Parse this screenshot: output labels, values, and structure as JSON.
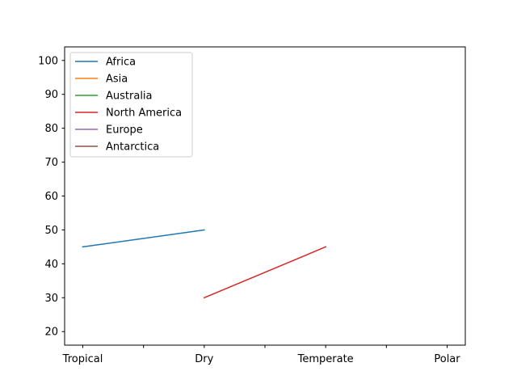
{
  "chart_data": {
    "type": "line",
    "categories": [
      "Tropical",
      "",
      "Dry",
      "",
      "Temperate",
      "",
      "Polar"
    ],
    "x_positions": [
      0,
      0.5,
      1,
      1.5,
      2,
      2.5,
      3
    ],
    "ylim": [
      16,
      104
    ],
    "yticks": [
      20,
      30,
      40,
      50,
      60,
      70,
      80,
      90,
      100
    ],
    "grid": false,
    "legend_position": "top-left",
    "series": [
      {
        "name": "Africa",
        "color": "#1f77b4",
        "x": [
          0,
          1
        ],
        "y": [
          45,
          50
        ]
      },
      {
        "name": "Asia",
        "color": "#ff7f0e",
        "x": [],
        "y": []
      },
      {
        "name": "Australia",
        "color": "#2ca02c",
        "x": [],
        "y": []
      },
      {
        "name": "North America",
        "color": "#d62728",
        "x": [
          1,
          2
        ],
        "y": [
          30,
          45
        ]
      },
      {
        "name": "Europe",
        "color": "#9467bd",
        "x": [],
        "y": []
      },
      {
        "name": "Antarctica",
        "color": "#8c564b",
        "x": [],
        "y": []
      }
    ]
  }
}
